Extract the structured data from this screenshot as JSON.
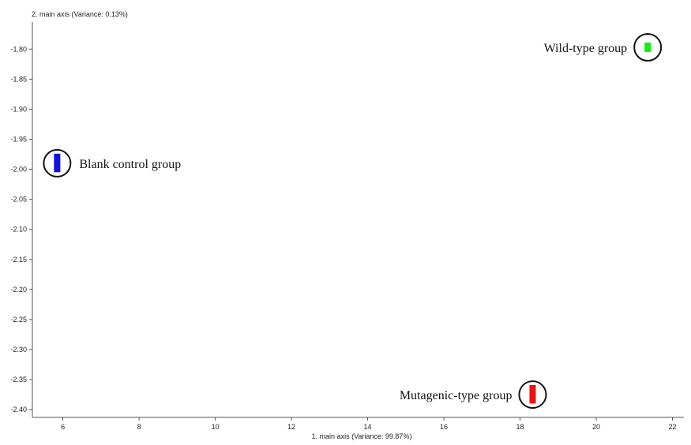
{
  "chart_data": {
    "type": "scatter",
    "xlabel": "1. main axis (Variance: 99.87%)",
    "ylabel": "2. main axis (Variance: 0.13%)",
    "xlim": [
      5.2,
      22.3
    ],
    "ylim": [
      -2.413,
      -1.755
    ],
    "x_ticks": [
      "6",
      "8",
      "10",
      "12",
      "14",
      "16",
      "18",
      "20",
      "22"
    ],
    "y_ticks": [
      "-1.80",
      "-1.85",
      "-1.90",
      "-1.95",
      "-2.00",
      "-2.05",
      "-2.10",
      "-2.15",
      "-2.20",
      "-2.25",
      "-2.30",
      "-2.35",
      "-2.40"
    ],
    "series": [
      {
        "name": "Blank control group",
        "color": "#1010e0",
        "points": [
          {
            "x": 5.85,
            "y": -1.982
          },
          {
            "x": 5.85,
            "y": -1.997
          }
        ],
        "cluster_center": {
          "x": 5.85,
          "y": -1.99
        }
      },
      {
        "name": "Wild-type group",
        "color": "#11ee11",
        "points": [
          {
            "x": 21.35,
            "y": -1.797
          }
        ],
        "cluster_center": {
          "x": 21.35,
          "y": -1.797
        }
      },
      {
        "name": "Mutagenic-type group",
        "color": "#ee1111",
        "points": [
          {
            "x": 18.33,
            "y": -2.367
          },
          {
            "x": 18.33,
            "y": -2.382
          }
        ],
        "cluster_center": {
          "x": 18.33,
          "y": -2.375
        }
      }
    ]
  }
}
